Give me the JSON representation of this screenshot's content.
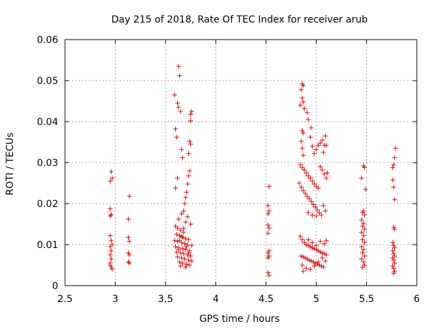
{
  "chart_data": {
    "type": "scatter",
    "title": "Day 215 of 2018, Rate Of TEC Index for receiver arub",
    "xlabel": "GPS time / hours",
    "ylabel": "ROTI / TECUs",
    "xlim": [
      2.5,
      6
    ],
    "ylim": [
      0,
      0.06
    ],
    "x_ticks": [
      2.5,
      3,
      3.5,
      4,
      4.5,
      5,
      5.5,
      6
    ],
    "x_tick_labels": [
      "2.5",
      "3",
      "3.5",
      "4",
      "4.5",
      "5",
      "5.5",
      "6"
    ],
    "y_ticks": [
      0,
      0.01,
      0.02,
      0.03,
      0.04,
      0.05,
      0.06
    ],
    "y_tick_labels": [
      "0",
      "0.01",
      "0.02",
      "0.03",
      "0.04",
      "0.05",
      "0.06"
    ],
    "grid": true,
    "marker": "+",
    "color": "#e00000",
    "series": [
      {
        "name": "ROTI",
        "points": [
          [
            2.95,
            0.0255
          ],
          [
            2.96,
            0.0278
          ],
          [
            2.97,
            0.0262
          ],
          [
            2.95,
            0.0188
          ],
          [
            2.96,
            0.0173
          ],
          [
            2.95,
            0.017
          ],
          [
            2.95,
            0.0122
          ],
          [
            2.96,
            0.011
          ],
          [
            2.97,
            0.01
          ],
          [
            2.95,
            0.0095
          ],
          [
            2.96,
            0.0085
          ],
          [
            2.95,
            0.0075
          ],
          [
            2.96,
            0.0065
          ],
          [
            2.95,
            0.0055
          ],
          [
            2.96,
            0.0045
          ],
          [
            2.97,
            0.004
          ],
          [
            2.95,
            0.005
          ],
          [
            3.14,
            0.0218
          ],
          [
            3.13,
            0.0162
          ],
          [
            3.13,
            0.0118
          ],
          [
            3.14,
            0.0108
          ],
          [
            3.13,
            0.008
          ],
          [
            3.14,
            0.0075
          ],
          [
            3.13,
            0.0058
          ],
          [
            3.14,
            0.0055
          ],
          [
            3.59,
            0.0465
          ],
          [
            3.63,
            0.0535
          ],
          [
            3.64,
            0.0512
          ],
          [
            3.62,
            0.0445
          ],
          [
            3.63,
            0.0435
          ],
          [
            3.65,
            0.0425
          ],
          [
            3.6,
            0.0382
          ],
          [
            3.61,
            0.0362
          ],
          [
            3.66,
            0.0332
          ],
          [
            3.67,
            0.0312
          ],
          [
            3.62,
            0.0262
          ],
          [
            3.6,
            0.0238
          ],
          [
            3.76,
            0.0425
          ],
          [
            3.75,
            0.0418
          ],
          [
            3.75,
            0.0402
          ],
          [
            3.74,
            0.0352
          ],
          [
            3.75,
            0.0345
          ],
          [
            3.73,
            0.0322
          ],
          [
            3.74,
            0.028
          ],
          [
            3.73,
            0.0268
          ],
          [
            3.72,
            0.0248
          ],
          [
            3.71,
            0.0228
          ],
          [
            3.7,
            0.0215
          ],
          [
            3.69,
            0.02
          ],
          [
            3.68,
            0.0182
          ],
          [
            3.66,
            0.0175
          ],
          [
            3.72,
            0.0168
          ],
          [
            3.63,
            0.0162
          ],
          [
            3.7,
            0.0155
          ],
          [
            3.75,
            0.015
          ],
          [
            3.6,
            0.0145
          ],
          [
            3.62,
            0.014
          ],
          [
            3.65,
            0.0135
          ],
          [
            3.68,
            0.013
          ],
          [
            3.61,
            0.0125
          ],
          [
            3.64,
            0.0122
          ],
          [
            3.67,
            0.0118
          ],
          [
            3.7,
            0.0115
          ],
          [
            3.73,
            0.0112
          ],
          [
            3.59,
            0.011
          ],
          [
            3.62,
            0.0108
          ],
          [
            3.66,
            0.0105
          ],
          [
            3.69,
            0.0102
          ],
          [
            3.72,
            0.01
          ],
          [
            3.76,
            0.0098
          ],
          [
            3.6,
            0.0095
          ],
          [
            3.63,
            0.0092
          ],
          [
            3.67,
            0.009
          ],
          [
            3.7,
            0.0088
          ],
          [
            3.74,
            0.0085
          ],
          [
            3.61,
            0.0082
          ],
          [
            3.65,
            0.008
          ],
          [
            3.68,
            0.0078
          ],
          [
            3.72,
            0.0075
          ],
          [
            3.75,
            0.0072
          ],
          [
            3.62,
            0.007
          ],
          [
            3.66,
            0.0068
          ],
          [
            3.69,
            0.0065
          ],
          [
            3.73,
            0.0062
          ],
          [
            3.76,
            0.006
          ],
          [
            3.64,
            0.0058
          ],
          [
            3.67,
            0.0055
          ],
          [
            3.71,
            0.0052
          ],
          [
            3.74,
            0.005
          ],
          [
            3.65,
            0.0048
          ],
          [
            3.7,
            0.0045
          ],
          [
            3.63,
            0.0088
          ],
          [
            3.71,
            0.0095
          ],
          [
            3.66,
            0.012
          ],
          [
            3.68,
            0.014
          ],
          [
            3.64,
            0.011
          ],
          [
            3.73,
            0.008
          ],
          [
            4.53,
            0.0242
          ],
          [
            4.52,
            0.0195
          ],
          [
            4.53,
            0.0182
          ],
          [
            4.52,
            0.0175
          ],
          [
            4.52,
            0.0148
          ],
          [
            4.53,
            0.014
          ],
          [
            4.52,
            0.0128
          ],
          [
            4.53,
            0.0085
          ],
          [
            4.52,
            0.008
          ],
          [
            4.53,
            0.0072
          ],
          [
            4.52,
            0.0068
          ],
          [
            4.52,
            0.0032
          ],
          [
            4.53,
            0.0025
          ],
          [
            4.86,
            0.0492
          ],
          [
            4.87,
            0.0488
          ],
          [
            4.85,
            0.0478
          ],
          [
            4.86,
            0.0458
          ],
          [
            4.87,
            0.0448
          ],
          [
            4.84,
            0.044
          ],
          [
            4.88,
            0.0432
          ],
          [
            4.91,
            0.0422
          ],
          [
            4.92,
            0.0405
          ],
          [
            4.86,
            0.0378
          ],
          [
            4.87,
            0.0372
          ],
          [
            4.85,
            0.0352
          ],
          [
            4.86,
            0.0335
          ],
          [
            4.87,
            0.0318
          ],
          [
            4.95,
            0.0385
          ],
          [
            4.94,
            0.0362
          ],
          [
            4.96,
            0.034
          ],
          [
            4.98,
            0.0322
          ],
          [
            5.0,
            0.0332
          ],
          [
            5.02,
            0.0342
          ],
          [
            5.04,
            0.0348
          ],
          [
            5.06,
            0.0355
          ],
          [
            5.08,
            0.0342
          ],
          [
            5.09,
            0.0365
          ],
          [
            5.1,
            0.0342
          ],
          [
            5.07,
            0.0325
          ],
          [
            4.84,
            0.0295
          ],
          [
            4.86,
            0.0288
          ],
          [
            4.88,
            0.0282
          ],
          [
            4.9,
            0.0275
          ],
          [
            4.92,
            0.0268
          ],
          [
            4.94,
            0.0262
          ],
          [
            4.96,
            0.0255
          ],
          [
            4.98,
            0.0248
          ],
          [
            5.0,
            0.0242
          ],
          [
            5.02,
            0.0238
          ],
          [
            5.04,
            0.029
          ],
          [
            5.06,
            0.0282
          ],
          [
            5.08,
            0.0272
          ],
          [
            5.1,
            0.0262
          ],
          [
            5.11,
            0.0275
          ],
          [
            4.83,
            0.025
          ],
          [
            4.85,
            0.024
          ],
          [
            4.87,
            0.0232
          ],
          [
            4.89,
            0.0225
          ],
          [
            4.91,
            0.0218
          ],
          [
            4.93,
            0.0212
          ],
          [
            4.95,
            0.0205
          ],
          [
            4.97,
            0.0198
          ],
          [
            4.99,
            0.0192
          ],
          [
            5.01,
            0.0185
          ],
          [
            5.03,
            0.0178
          ],
          [
            5.05,
            0.0172
          ],
          [
            5.07,
            0.0195
          ],
          [
            5.09,
            0.0182
          ],
          [
            4.92,
            0.0178
          ],
          [
            4.96,
            0.0172
          ],
          [
            5.0,
            0.017
          ],
          [
            4.84,
            0.012
          ],
          [
            4.86,
            0.0112
          ],
          [
            4.88,
            0.0105
          ],
          [
            4.9,
            0.01
          ],
          [
            4.92,
            0.0098
          ],
          [
            4.94,
            0.0095
          ],
          [
            4.96,
            0.0092
          ],
          [
            4.98,
            0.009
          ],
          [
            5.0,
            0.0088
          ],
          [
            5.02,
            0.0085
          ],
          [
            5.04,
            0.0082
          ],
          [
            5.06,
            0.008
          ],
          [
            5.08,
            0.0078
          ],
          [
            5.1,
            0.0075
          ],
          [
            4.85,
            0.0072
          ],
          [
            4.87,
            0.007
          ],
          [
            4.89,
            0.0068
          ],
          [
            4.91,
            0.0065
          ],
          [
            4.93,
            0.0062
          ],
          [
            4.95,
            0.006
          ],
          [
            4.97,
            0.0058
          ],
          [
            4.99,
            0.0055
          ],
          [
            5.01,
            0.0052
          ],
          [
            5.03,
            0.005
          ],
          [
            5.05,
            0.0048
          ],
          [
            5.07,
            0.0045
          ],
          [
            5.09,
            0.006
          ],
          [
            4.86,
            0.005
          ],
          [
            4.9,
            0.0042
          ],
          [
            4.94,
            0.004
          ],
          [
            4.98,
            0.0048
          ],
          [
            5.02,
            0.0058
          ],
          [
            5.06,
            0.0068
          ],
          [
            5.1,
            0.011
          ],
          [
            5.08,
            0.0102
          ],
          [
            5.04,
            0.0108
          ],
          [
            4.87,
            0.0035
          ],
          [
            4.92,
            0.0112
          ],
          [
            4.96,
            0.0105
          ],
          [
            5.0,
            0.0098
          ],
          [
            5.47,
            0.0292
          ],
          [
            5.48,
            0.0288
          ],
          [
            5.45,
            0.0262
          ],
          [
            5.49,
            0.0235
          ],
          [
            5.47,
            0.0182
          ],
          [
            5.46,
            0.0178
          ],
          [
            5.48,
            0.0172
          ],
          [
            5.45,
            0.016
          ],
          [
            5.47,
            0.0152
          ],
          [
            5.46,
            0.0145
          ],
          [
            5.48,
            0.0138
          ],
          [
            5.45,
            0.013
          ],
          [
            5.47,
            0.0122
          ],
          [
            5.46,
            0.0112
          ],
          [
            5.48,
            0.0105
          ],
          [
            5.45,
            0.0095
          ],
          [
            5.47,
            0.0088
          ],
          [
            5.46,
            0.008
          ],
          [
            5.48,
            0.0072
          ],
          [
            5.45,
            0.0065
          ],
          [
            5.47,
            0.0058
          ],
          [
            5.48,
            0.005
          ],
          [
            5.46,
            0.0045
          ],
          [
            5.79,
            0.0335
          ],
          [
            5.78,
            0.0312
          ],
          [
            5.77,
            0.0295
          ],
          [
            5.76,
            0.0288
          ],
          [
            5.76,
            0.0258
          ],
          [
            5.77,
            0.024
          ],
          [
            5.78,
            0.021
          ],
          [
            5.77,
            0.0142
          ],
          [
            5.78,
            0.0138
          ],
          [
            5.76,
            0.0105
          ],
          [
            5.77,
            0.0098
          ],
          [
            5.78,
            0.0092
          ],
          [
            5.76,
            0.0085
          ],
          [
            5.77,
            0.0078
          ],
          [
            5.78,
            0.0072
          ],
          [
            5.76,
            0.0068
          ],
          [
            5.77,
            0.0062
          ],
          [
            5.78,
            0.0055
          ],
          [
            5.76,
            0.0048
          ],
          [
            5.77,
            0.0042
          ],
          [
            5.78,
            0.0035
          ],
          [
            5.77,
            0.003
          ]
        ]
      }
    ]
  }
}
